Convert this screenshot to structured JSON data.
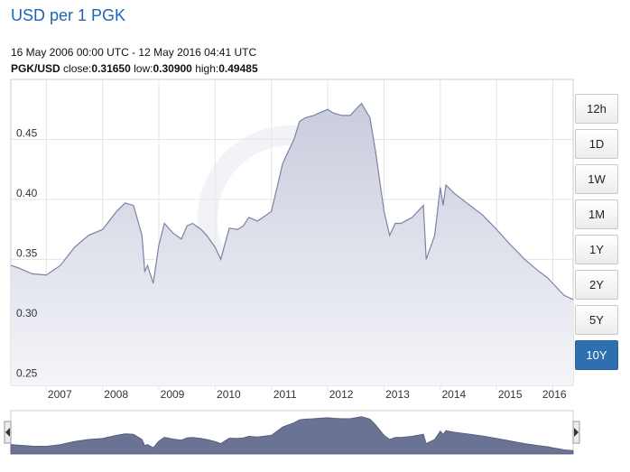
{
  "header": {
    "title": "USD per 1 PGK",
    "range": "16 May 2006 00:00 UTC - 12 May 2016 04:41 UTC",
    "pair_label": "PGK/USD",
    "close_label": "close:",
    "close_value": "0.31650",
    "low_label": "low:",
    "low_value": "0.30900",
    "high_label": "high:",
    "high_value": "0.49485"
  },
  "range_buttons": [
    {
      "label": "12h",
      "active": false
    },
    {
      "label": "1D",
      "active": false
    },
    {
      "label": "1W",
      "active": false
    },
    {
      "label": "1M",
      "active": false
    },
    {
      "label": "1Y",
      "active": false
    },
    {
      "label": "2Y",
      "active": false
    },
    {
      "label": "5Y",
      "active": false
    },
    {
      "label": "10Y",
      "active": true
    }
  ],
  "colors": {
    "line": "#7a83a6",
    "area_top": "#c9ccdc",
    "area_bottom": "#f4f5f9",
    "nav_fill": "#6b7394",
    "title": "#1f64b8",
    "active_button": "#2e6fb0"
  },
  "chart_data": {
    "type": "area",
    "x_unit": "year",
    "y_ticks": [
      0.25,
      0.3,
      0.35,
      0.4,
      0.45
    ],
    "y_tick_labels": [
      "0.25",
      "0.30",
      "0.35",
      "0.40",
      "0.45"
    ],
    "ylim": [
      0.245,
      0.5
    ],
    "xlim": [
      2006.37,
      2016.36
    ],
    "x_ticks": [
      2007,
      2008,
      2009,
      2010,
      2011,
      2012,
      2013,
      2014,
      2015,
      2016
    ],
    "x_tick_labels": [
      "2007",
      "2008",
      "2009",
      "2010",
      "2011",
      "2012",
      "2013",
      "2014",
      "2015",
      "2016"
    ],
    "grid": true,
    "series": [
      {
        "x": [
          2006.37,
          2006.5,
          2006.75,
          2007.0,
          2007.25,
          2007.5,
          2007.75,
          2008.0,
          2008.25,
          2008.4,
          2008.55,
          2008.7,
          2008.75,
          2008.8,
          2008.9,
          2009.0,
          2009.1,
          2009.25,
          2009.4,
          2009.5,
          2009.6,
          2009.75,
          2009.85,
          2010.0,
          2010.1,
          2010.25,
          2010.4,
          2010.5,
          2010.6,
          2010.75,
          2010.85,
          2011.0,
          2011.1,
          2011.2,
          2011.3,
          2011.4,
          2011.5,
          2011.6,
          2011.75,
          2011.85,
          2012.0,
          2012.1,
          2012.25,
          2012.4,
          2012.5,
          2012.6,
          2012.75,
          2012.85,
          2013.0,
          2013.1,
          2013.2,
          2013.3,
          2013.5,
          2013.7,
          2013.75,
          2013.9,
          2014.0,
          2014.05,
          2014.1,
          2014.25,
          2014.5,
          2014.75,
          2015.0,
          2015.25,
          2015.5,
          2015.75,
          2015.9,
          2016.0,
          2016.2,
          2016.36
        ],
        "y": [
          0.345,
          0.343,
          0.338,
          0.337,
          0.345,
          0.36,
          0.37,
          0.375,
          0.39,
          0.397,
          0.395,
          0.37,
          0.34,
          0.345,
          0.33,
          0.362,
          0.38,
          0.372,
          0.367,
          0.378,
          0.38,
          0.375,
          0.37,
          0.36,
          0.35,
          0.376,
          0.375,
          0.378,
          0.385,
          0.382,
          0.385,
          0.39,
          0.41,
          0.43,
          0.44,
          0.45,
          0.465,
          0.468,
          0.47,
          0.472,
          0.475,
          0.472,
          0.47,
          0.47,
          0.475,
          0.48,
          0.468,
          0.44,
          0.39,
          0.37,
          0.38,
          0.38,
          0.385,
          0.395,
          0.35,
          0.37,
          0.41,
          0.395,
          0.412,
          0.405,
          0.396,
          0.387,
          0.375,
          0.362,
          0.35,
          0.34,
          0.335,
          0.33,
          0.32,
          0.3165
        ]
      }
    ]
  }
}
